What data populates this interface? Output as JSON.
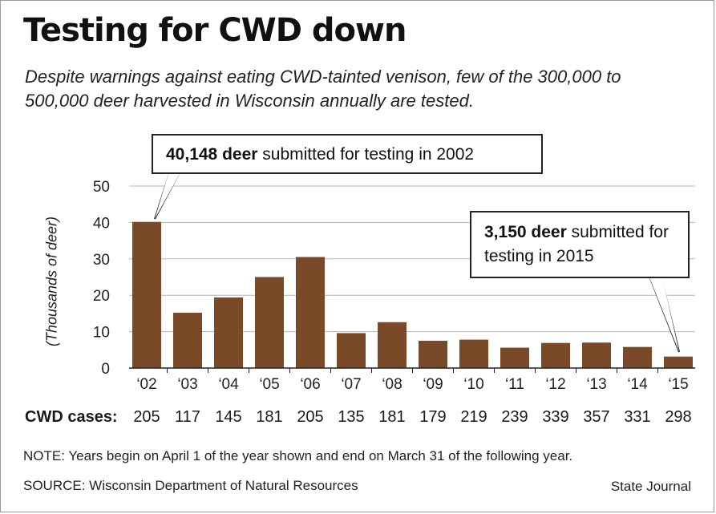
{
  "header": {
    "title": "Testing for CWD down",
    "subtitle": "Despite warnings against eating CWD-tainted venison, few of the 300,000 to 500,000 deer harvested in Wisconsin annually are tested."
  },
  "chart_data": {
    "type": "bar",
    "categories": [
      "‘02",
      "‘03",
      "‘04",
      "‘05",
      "‘06",
      "‘07",
      "‘08",
      "‘09",
      "‘10",
      "‘11",
      "‘12",
      "‘13",
      "‘14",
      "‘15"
    ],
    "values": [
      40.148,
      15.2,
      19.4,
      25.0,
      30.5,
      9.6,
      12.6,
      7.5,
      7.8,
      5.6,
      6.9,
      7.0,
      5.8,
      3.15
    ],
    "ylabel": "(Thousands of deer)",
    "ylim": [
      0,
      50
    ],
    "yticks": [
      0,
      10,
      20,
      30,
      40,
      50
    ],
    "grid": true,
    "bar_color": "#7a4a28"
  },
  "callouts": {
    "first": {
      "bold": "40,148 deer",
      "text": " submitted for testing in 2002"
    },
    "last": {
      "bold": "3,150 deer",
      "text": " submitted for testing in 2015"
    }
  },
  "cwd_cases": {
    "label": "CWD cases:",
    "values": [
      "205",
      "117",
      "145",
      "181",
      "205",
      "135",
      "181",
      "179",
      "219",
      "239",
      "339",
      "357",
      "331",
      "298"
    ]
  },
  "footer": {
    "note": "NOTE: Years begin on April 1 of the year shown and end on March 31 of the following year.",
    "source": "SOURCE: Wisconsin Department of Natural Resources",
    "credit": "State Journal"
  }
}
